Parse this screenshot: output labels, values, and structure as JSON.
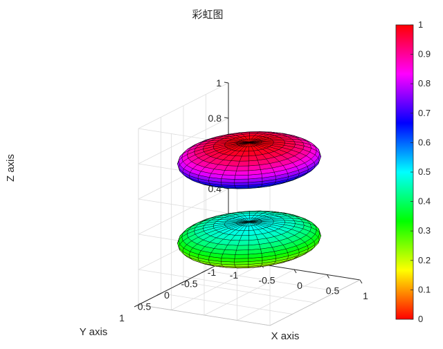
{
  "chart_data": {
    "type": "surface3d",
    "title": "彩虹图",
    "xlabel": "X axis",
    "ylabel": "Y axis",
    "zlabel": "Z axis",
    "xlim": [
      -1,
      1
    ],
    "ylim": [
      -1,
      1
    ],
    "zlim": [
      0,
      1
    ],
    "xticks": [
      "-1",
      "-0.5",
      "0",
      "0.5",
      "1"
    ],
    "yticks": [
      "-1",
      "-0.5",
      "0",
      "0.5",
      "1"
    ],
    "zticks": [
      "0",
      "0.2",
      "0.4",
      "0.6",
      "0.8",
      "1"
    ],
    "colormap": "hsv",
    "colorbar": {
      "range": [
        0,
        1
      ],
      "ticks": [
        "0",
        "0.1",
        "0.2",
        "0.3",
        "0.4",
        "0.5",
        "0.6",
        "0.7",
        "0.8",
        "0.9",
        "1"
      ],
      "stops": [
        "#ff0000",
        "#ffff00",
        "#00ff00",
        "#00ffff",
        "#0000ff",
        "#ff00ff",
        "#ff0000"
      ]
    },
    "surfaces": [
      {
        "name": "",
        "center_z": 0.3,
        "radius": 0.9,
        "half_height": 0.1,
        "color_range": [
          0.1,
          0.5
        ]
      },
      {
        "name": "",
        "center_z": 0.75,
        "radius": 0.9,
        "half_height": 0.1,
        "color_range": [
          0.5,
          1.0
        ]
      }
    ],
    "grid": true,
    "box": true,
    "edge_color": "#000000"
  }
}
